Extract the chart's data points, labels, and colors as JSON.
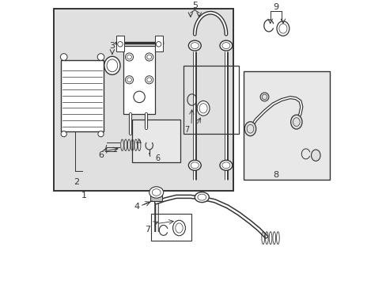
{
  "bg_color": "#ffffff",
  "diagram_bg": "#e0e0e0",
  "box_color": "#333333",
  "figsize": [
    4.89,
    3.6
  ],
  "dpi": 100
}
